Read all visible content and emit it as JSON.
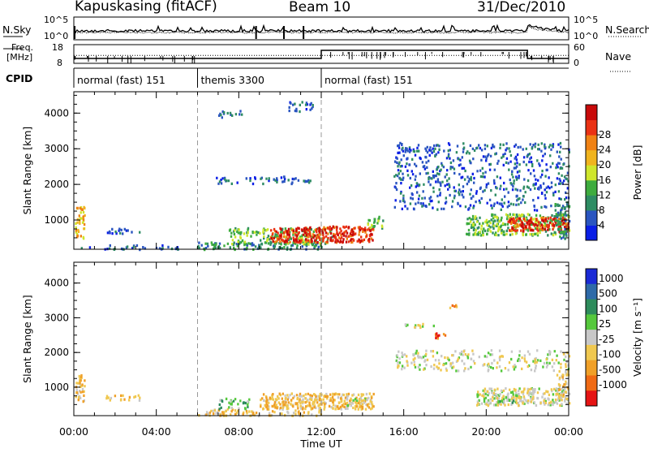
{
  "header": {
    "title": "Kapuskasing (fitACF)",
    "beam": "Beam 10",
    "date": "31/Dec/2010"
  },
  "strip_labels": {
    "nsky": "N.Sky",
    "nsearch": "N.Search",
    "freq_line1": "Freq.",
    "freq_line2": "[MHz]",
    "nave": "Nave",
    "cpid": "CPID",
    "noise_top_left": "10^5",
    "noise_bot_left": "10^0",
    "noise_top_right": "10^5",
    "noise_bot_right": "10^0",
    "freq_top": "18",
    "freq_bot": "8",
    "nave_top": "60",
    "nave_bot": "0"
  },
  "cpid_segments": [
    {
      "label": "normal (fast) 151",
      "start": 0,
      "end": 6
    },
    {
      "label": "themis 3300",
      "start": 6,
      "end": 12
    },
    {
      "label": "normal (fast) 151",
      "start": 12,
      "end": 24
    }
  ],
  "chart_data": [
    {
      "type": "heatmap",
      "ylabel": "Slant Range [km]",
      "xlabel": "Time UT",
      "x_ticks": [
        "00:00",
        "04:00",
        "08:00",
        "12:00",
        "16:00",
        "20:00",
        "00:00"
      ],
      "x_range_hours": [
        0,
        24
      ],
      "y_ticks": [
        1000,
        2000,
        3000,
        4000
      ],
      "ylim": [
        180,
        4600
      ],
      "colorbar": {
        "label": "Power [dB]",
        "ticks": [
          "4",
          "8",
          "12",
          "16",
          "20",
          "24",
          "28"
        ],
        "colors": [
          "#0a1ee6",
          "#2a55c0",
          "#2e8c63",
          "#3eac3e",
          "#cfe62c",
          "#f0b41e",
          "#f08214",
          "#ea3214",
          "#c80a0a"
        ]
      },
      "dashed_time_markers": [
        6,
        12
      ],
      "blobs": [
        {
          "t0": 0.05,
          "t1": 0.5,
          "r0": 500,
          "r1": 1400,
          "density": 0.7,
          "level": 5
        },
        {
          "t0": 1.5,
          "t1": 3.2,
          "r0": 650,
          "r1": 800,
          "density": 0.5,
          "level": 1
        },
        {
          "t0": 0.2,
          "t1": 6,
          "r0": 200,
          "r1": 320,
          "density": 0.35,
          "level": 1
        },
        {
          "t0": 6,
          "t1": 12,
          "r0": 200,
          "r1": 400,
          "density": 0.6,
          "level": 2
        },
        {
          "t0": 7.5,
          "t1": 12.5,
          "r0": 350,
          "r1": 800,
          "density": 0.55,
          "level": 3
        },
        {
          "t0": 9.5,
          "t1": 14.5,
          "r0": 400,
          "r1": 850,
          "density": 0.9,
          "level": 7
        },
        {
          "t0": 14.2,
          "t1": 15,
          "r0": 800,
          "r1": 1150,
          "density": 0.6,
          "level": 3
        },
        {
          "t0": 7,
          "t1": 8.2,
          "r0": 3900,
          "r1": 4100,
          "density": 0.45,
          "level": 1
        },
        {
          "t0": 10.3,
          "t1": 11.6,
          "r0": 4050,
          "r1": 4350,
          "density": 0.4,
          "level": 1
        },
        {
          "t0": 6.5,
          "t1": 11.5,
          "r0": 2050,
          "r1": 2250,
          "density": 0.35,
          "level": 1
        },
        {
          "t0": 15.5,
          "t1": 24,
          "r0": 1300,
          "r1": 3200,
          "density": 0.25,
          "level": 1
        },
        {
          "t0": 16,
          "t1": 17.5,
          "r0": 2900,
          "r1": 3050,
          "density": 0.55,
          "level": 1
        },
        {
          "t0": 19,
          "t1": 24,
          "r0": 600,
          "r1": 1200,
          "density": 0.7,
          "level": 3
        },
        {
          "t0": 21,
          "t1": 24,
          "r0": 700,
          "r1": 1100,
          "density": 0.9,
          "level": 7
        },
        {
          "t0": 23.3,
          "t1": 24,
          "r0": 500,
          "r1": 1500,
          "density": 0.6,
          "level": 2
        }
      ]
    },
    {
      "type": "heatmap",
      "ylabel": "Slant Range [km]",
      "xlabel": "Time UT",
      "x_ticks": [
        "00:00",
        "04:00",
        "08:00",
        "12:00",
        "16:00",
        "20:00",
        "00:00"
      ],
      "x_range_hours": [
        0,
        24
      ],
      "y_ticks": [
        1000,
        2000,
        3000,
        4000
      ],
      "ylim": [
        180,
        4600
      ],
      "colorbar": {
        "label": "Velocity [m s⁻¹]",
        "ticks": [
          "1000",
          "500",
          "100",
          "25",
          "-25",
          "-100",
          "-500",
          "-1000"
        ],
        "colors": [
          "#1a2ad6",
          "#2e6aa8",
          "#2e8c5c",
          "#55c83c",
          "#c8c8c8",
          "#f0c850",
          "#f0a028",
          "#f06a14",
          "#e61414"
        ]
      },
      "dashed_time_markers": [
        6,
        12
      ],
      "blobs": [
        {
          "t0": 0.05,
          "t1": 0.5,
          "r0": 600,
          "r1": 1400,
          "density": 0.7,
          "level": 5
        },
        {
          "t0": 1.5,
          "t1": 3.2,
          "r0": 650,
          "r1": 800,
          "density": 0.5,
          "level": 5
        },
        {
          "t0": 6,
          "t1": 12,
          "r0": 200,
          "r1": 400,
          "density": 0.5,
          "level": 5
        },
        {
          "t0": 9,
          "t1": 14.5,
          "r0": 400,
          "r1": 850,
          "density": 0.9,
          "level": 5
        },
        {
          "t0": 13.2,
          "t1": 14.2,
          "r0": 500,
          "r1": 700,
          "density": 0.7,
          "level": 4
        },
        {
          "t0": 7,
          "t1": 8.5,
          "r0": 400,
          "r1": 700,
          "density": 0.5,
          "level": 3
        },
        {
          "t0": 16,
          "t1": 17.5,
          "r0": 2750,
          "r1": 2850,
          "density": 0.6,
          "level": 4
        },
        {
          "t0": 15.5,
          "t1": 24,
          "r0": 1500,
          "r1": 2100,
          "density": 0.3,
          "level": 4
        },
        {
          "t0": 17.5,
          "t1": 18.1,
          "r0": 2400,
          "r1": 2600,
          "density": 0.6,
          "level": 7
        },
        {
          "t0": 19.5,
          "t1": 24,
          "r0": 500,
          "r1": 1000,
          "density": 0.8,
          "level": 4
        },
        {
          "t0": 20.5,
          "t1": 21.3,
          "r0": 550,
          "r1": 700,
          "density": 0.8,
          "level": 3
        },
        {
          "t0": 23.4,
          "t1": 24,
          "r0": 700,
          "r1": 1500,
          "density": 0.6,
          "level": 5
        },
        {
          "t0": 18.2,
          "t1": 18.6,
          "r0": 3300,
          "r1": 3450,
          "density": 0.6,
          "level": 6
        }
      ]
    }
  ]
}
